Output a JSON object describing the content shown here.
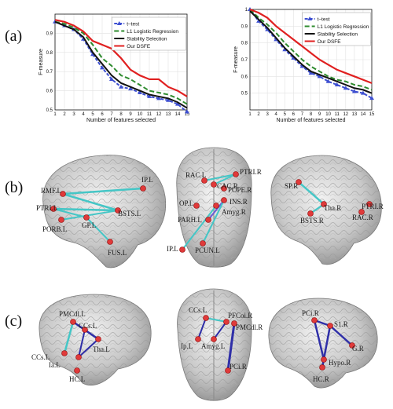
{
  "labels": {
    "a": "(a)",
    "b": "(b)",
    "c": "(c)"
  },
  "chart_data": [
    {
      "type": "line",
      "xlabel": "Number of features selected",
      "ylabel": "F-measure",
      "xlim": [
        1,
        15
      ],
      "ylim": [
        0.5,
        1.0
      ],
      "xticks": [
        1,
        2,
        3,
        4,
        5,
        6,
        7,
        8,
        9,
        10,
        11,
        12,
        13,
        14,
        15
      ],
      "yticks": [
        0.5,
        0.6,
        0.7,
        0.8,
        0.9
      ],
      "x": [
        1,
        2,
        3,
        4,
        5,
        6,
        7,
        8,
        9,
        10,
        11,
        12,
        13,
        14,
        15
      ],
      "series": [
        {
          "name": "t–test",
          "color": "#3d4fd1",
          "dash": "4,2",
          "marker": "triangle",
          "values": [
            0.96,
            0.94,
            0.92,
            0.87,
            0.79,
            0.72,
            0.66,
            0.62,
            0.61,
            0.59,
            0.57,
            0.56,
            0.55,
            0.53,
            0.49
          ]
        },
        {
          "name": "L1 Logistic Regression",
          "color": "#2e8b2e",
          "dash": "6,3",
          "marker": "none",
          "values": [
            0.96,
            0.95,
            0.93,
            0.9,
            0.84,
            0.77,
            0.73,
            0.68,
            0.66,
            0.63,
            0.6,
            0.59,
            0.58,
            0.56,
            0.53
          ]
        },
        {
          "name": "Stability Selection",
          "color": "#111111",
          "dash": "",
          "marker": "none",
          "values": [
            0.96,
            0.94,
            0.92,
            0.88,
            0.8,
            0.74,
            0.68,
            0.64,
            0.62,
            0.6,
            0.58,
            0.57,
            0.56,
            0.54,
            0.51
          ]
        },
        {
          "name": "Our DSFE",
          "color": "#e02020",
          "dash": "",
          "marker": "none",
          "values": [
            0.97,
            0.96,
            0.94,
            0.91,
            0.86,
            0.84,
            0.82,
            0.77,
            0.71,
            0.68,
            0.66,
            0.66,
            0.62,
            0.6,
            0.57
          ]
        }
      ]
    },
    {
      "type": "line",
      "xlabel": "Number of features selected",
      "ylabel": "F-measure",
      "xlim": [
        1,
        15
      ],
      "ylim": [
        0.4,
        1.0
      ],
      "xticks": [
        1,
        2,
        3,
        4,
        5,
        6,
        7,
        8,
        9,
        10,
        11,
        12,
        13,
        14,
        15
      ],
      "yticks": [
        0.5,
        0.6,
        0.7,
        0.8,
        0.9,
        1
      ],
      "x": [
        1,
        2,
        3,
        4,
        5,
        6,
        7,
        8,
        9,
        10,
        11,
        12,
        13,
        14,
        15
      ],
      "series": [
        {
          "name": "t–test",
          "color": "#3d4fd1",
          "dash": "4,2",
          "marker": "triangle",
          "values": [
            1.0,
            0.93,
            0.88,
            0.82,
            0.76,
            0.71,
            0.66,
            0.62,
            0.6,
            0.57,
            0.55,
            0.53,
            0.51,
            0.5,
            0.47
          ]
        },
        {
          "name": "L1 Logistic Regression",
          "color": "#2e8b2e",
          "dash": "6,3",
          "marker": "none",
          "values": [
            1.0,
            0.95,
            0.91,
            0.86,
            0.8,
            0.75,
            0.7,
            0.66,
            0.63,
            0.6,
            0.58,
            0.57,
            0.55,
            0.54,
            0.52
          ]
        },
        {
          "name": "Stability Selection",
          "color": "#111111",
          "dash": "",
          "marker": "none",
          "values": [
            0.99,
            0.94,
            0.89,
            0.83,
            0.77,
            0.72,
            0.67,
            0.63,
            0.61,
            0.59,
            0.57,
            0.55,
            0.53,
            0.52,
            0.5
          ]
        },
        {
          "name": "Our DSFE",
          "color": "#e02020",
          "dash": "",
          "marker": "none",
          "values": [
            1.0,
            0.98,
            0.95,
            0.9,
            0.86,
            0.82,
            0.78,
            0.74,
            0.7,
            0.67,
            0.64,
            0.62,
            0.6,
            0.58,
            0.56
          ]
        }
      ]
    }
  ],
  "brains_b": {
    "left": [
      "RMF.L",
      "IP.L",
      "PTRI.L",
      "BSTS.L",
      "PORB.L",
      "GP.L",
      "FUS.L"
    ],
    "top": [
      "RAC.L",
      "PTRI.R",
      "CAC.R",
      "POPE.R",
      "INS.R",
      "OP.L",
      "Amyg.R",
      "PARH.L",
      "IP.L",
      "PCUN.L"
    ],
    "right": [
      "SP.R",
      "Tha.R",
      "BSTS.R",
      "PTRI.R",
      "RAC.R"
    ]
  },
  "brains_c": {
    "left": [
      "PMCdl.L",
      "CCs.L",
      "CCs.L",
      "Tha.L",
      "Ia.L",
      "HC.L"
    ],
    "top": [
      "CCs.L",
      "PFCoi.R",
      "PMCdl.R",
      "Ip.L",
      "Amyg.L",
      "PCi.R"
    ],
    "right": [
      "PCi.R",
      "S1.R",
      "G.R",
      "Hypo.R",
      "HC.R"
    ]
  }
}
